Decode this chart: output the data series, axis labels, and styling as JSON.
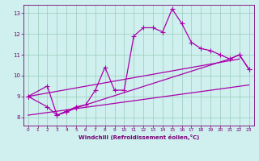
{
  "xlabel": "Windchill (Refroidissement éolien,°C)",
  "bg_color": "#cff0ee",
  "line_color": "#aa00aa",
  "grid_color": "#99ccbb",
  "xlim": [
    -0.5,
    23.5
  ],
  "ylim": [
    7.6,
    13.4
  ],
  "xticks": [
    0,
    1,
    2,
    3,
    4,
    5,
    6,
    7,
    8,
    9,
    10,
    11,
    12,
    13,
    14,
    15,
    16,
    17,
    18,
    19,
    20,
    21,
    22,
    23
  ],
  "yticks": [
    8,
    9,
    10,
    11,
    12,
    13
  ],
  "series1_x": [
    0,
    2,
    3,
    4,
    5,
    6,
    7,
    8,
    9,
    10,
    11,
    12,
    13,
    14,
    15,
    16,
    17,
    18,
    19,
    20,
    21,
    22,
    23
  ],
  "series1_y": [
    9.0,
    9.5,
    8.1,
    8.3,
    8.5,
    8.6,
    9.3,
    10.4,
    9.3,
    9.3,
    11.9,
    12.3,
    12.3,
    12.1,
    13.2,
    12.5,
    11.6,
    11.3,
    11.2,
    11.0,
    10.8,
    11.0,
    10.3
  ],
  "series2_x": [
    0,
    2,
    3,
    4,
    5,
    21,
    22,
    23
  ],
  "series2_y": [
    9.0,
    8.5,
    8.1,
    8.25,
    8.45,
    10.8,
    11.0,
    10.3
  ],
  "series3_x": [
    0,
    22
  ],
  "series3_y": [
    9.0,
    10.8
  ],
  "series4_x": [
    0,
    23
  ],
  "series4_y": [
    8.1,
    9.55
  ]
}
